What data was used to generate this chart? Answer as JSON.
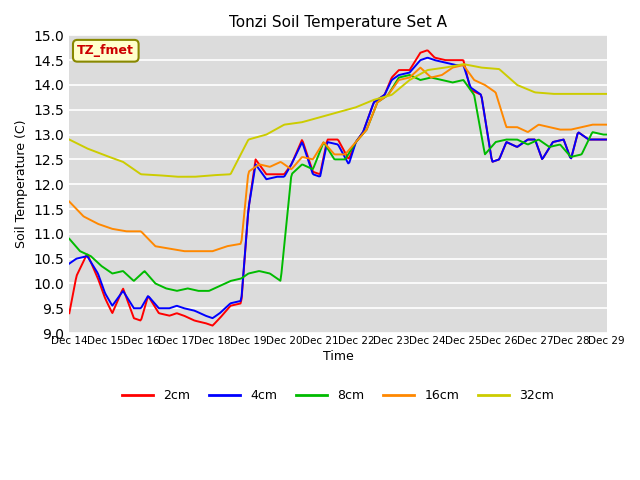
{
  "title": "Tonzi Soil Temperature Set A",
  "xlabel": "Time",
  "ylabel": "Soil Temperature (C)",
  "ylim": [
    9.0,
    15.0
  ],
  "yticks": [
    9.0,
    9.5,
    10.0,
    10.5,
    11.0,
    11.5,
    12.0,
    12.5,
    13.0,
    13.5,
    14.0,
    14.5,
    15.0
  ],
  "bg_color": "#dcdcdc",
  "fig_color": "#ffffff",
  "legend_label": "TZ_fmet",
  "legend_text_color": "#cc0000",
  "legend_bg": "#ffffcc",
  "legend_border": "#888800",
  "series_colors": {
    "2cm": "#ff0000",
    "4cm": "#0000ff",
    "8cm": "#00bb00",
    "16cm": "#ff8800",
    "32cm": "#cccc00"
  },
  "xtick_days": [
    14,
    15,
    16,
    17,
    18,
    19,
    20,
    21,
    22,
    23,
    24,
    25,
    26,
    27,
    28,
    29
  ],
  "xp_2cm": [
    14.0,
    14.2,
    14.5,
    14.8,
    15.0,
    15.2,
    15.5,
    15.8,
    16.0,
    16.2,
    16.5,
    16.8,
    17.0,
    17.2,
    17.5,
    17.8,
    18.0,
    18.2,
    18.5,
    18.8,
    19.0,
    19.2,
    19.5,
    19.8,
    20.0,
    20.2,
    20.5,
    20.8,
    21.0,
    21.2,
    21.5,
    21.8,
    22.0,
    22.2,
    22.5,
    22.8,
    23.0,
    23.2,
    23.5,
    23.8,
    24.0,
    24.2,
    24.5,
    24.8,
    25.0,
    25.2,
    25.5,
    25.8,
    26.0,
    26.2,
    26.5,
    26.8,
    27.0,
    27.2,
    27.5,
    27.8,
    28.0,
    28.2,
    28.5,
    28.8,
    29.0
  ],
  "fp_2cm": [
    9.4,
    10.15,
    10.6,
    10.1,
    9.7,
    9.4,
    9.9,
    9.3,
    9.25,
    9.75,
    9.4,
    9.35,
    9.4,
    9.35,
    9.25,
    9.2,
    9.15,
    9.3,
    9.55,
    9.6,
    11.5,
    12.5,
    12.2,
    12.2,
    12.2,
    12.4,
    12.9,
    12.25,
    12.2,
    12.9,
    12.9,
    12.5,
    12.85,
    13.05,
    13.65,
    13.8,
    14.15,
    14.3,
    14.3,
    14.65,
    14.7,
    14.55,
    14.5,
    14.5,
    14.5,
    13.9,
    13.8,
    12.45,
    12.5,
    12.85,
    12.75,
    12.9,
    12.9,
    12.5,
    12.85,
    12.9,
    12.5,
    13.05,
    12.9,
    12.9,
    12.9
  ],
  "xp_4cm": [
    14.0,
    14.2,
    14.5,
    14.8,
    15.0,
    15.2,
    15.5,
    15.8,
    16.0,
    16.2,
    16.5,
    16.8,
    17.0,
    17.2,
    17.5,
    17.8,
    18.0,
    18.2,
    18.5,
    18.8,
    19.0,
    19.2,
    19.5,
    19.8,
    20.0,
    20.2,
    20.5,
    20.8,
    21.0,
    21.2,
    21.5,
    21.8,
    22.0,
    22.2,
    22.5,
    22.8,
    23.0,
    23.2,
    23.5,
    23.8,
    24.0,
    24.2,
    24.5,
    24.8,
    25.0,
    25.2,
    25.5,
    25.8,
    26.0,
    26.2,
    26.5,
    26.8,
    27.0,
    27.2,
    27.5,
    27.8,
    28.0,
    28.2,
    28.5,
    28.8,
    29.0
  ],
  "fp_4cm": [
    10.4,
    10.5,
    10.55,
    10.2,
    9.8,
    9.55,
    9.85,
    9.5,
    9.5,
    9.75,
    9.5,
    9.5,
    9.55,
    9.5,
    9.45,
    9.35,
    9.3,
    9.4,
    9.6,
    9.65,
    11.5,
    12.4,
    12.1,
    12.15,
    12.15,
    12.4,
    12.85,
    12.2,
    12.15,
    12.85,
    12.8,
    12.4,
    12.85,
    13.05,
    13.65,
    13.8,
    14.1,
    14.2,
    14.25,
    14.5,
    14.55,
    14.5,
    14.45,
    14.4,
    14.4,
    13.95,
    13.8,
    12.45,
    12.5,
    12.85,
    12.75,
    12.9,
    12.9,
    12.5,
    12.85,
    12.9,
    12.5,
    13.05,
    12.9,
    12.9,
    12.9
  ],
  "xp_8cm": [
    14.0,
    14.3,
    14.6,
    14.9,
    15.2,
    15.5,
    15.8,
    16.1,
    16.4,
    16.7,
    17.0,
    17.3,
    17.6,
    17.9,
    18.2,
    18.5,
    18.8,
    19.0,
    19.3,
    19.6,
    19.9,
    20.2,
    20.5,
    20.8,
    21.1,
    21.4,
    21.7,
    22.0,
    22.3,
    22.6,
    22.9,
    23.2,
    23.5,
    23.8,
    24.1,
    24.4,
    24.7,
    25.0,
    25.3,
    25.6,
    25.9,
    26.2,
    26.5,
    26.8,
    27.1,
    27.4,
    27.7,
    28.0,
    28.3,
    28.6,
    28.9,
    29.0
  ],
  "fp_8cm": [
    10.9,
    10.65,
    10.55,
    10.35,
    10.2,
    10.25,
    10.05,
    10.25,
    10.0,
    9.9,
    9.85,
    9.9,
    9.85,
    9.85,
    9.95,
    10.05,
    10.1,
    10.2,
    10.25,
    10.2,
    10.05,
    12.2,
    12.4,
    12.3,
    12.85,
    12.5,
    12.5,
    12.85,
    13.1,
    13.65,
    13.8,
    14.15,
    14.2,
    14.1,
    14.15,
    14.1,
    14.05,
    14.1,
    13.8,
    12.6,
    12.85,
    12.9,
    12.9,
    12.8,
    12.9,
    12.75,
    12.8,
    12.55,
    12.6,
    13.05,
    13.0,
    13.0
  ],
  "xp_16cm": [
    14.0,
    14.4,
    14.8,
    15.2,
    15.6,
    16.0,
    16.4,
    16.8,
    17.2,
    17.6,
    18.0,
    18.4,
    18.8,
    19.0,
    19.3,
    19.6,
    19.9,
    20.2,
    20.5,
    20.8,
    21.1,
    21.4,
    21.7,
    22.0,
    22.3,
    22.6,
    22.9,
    23.2,
    23.5,
    23.8,
    24.1,
    24.4,
    24.7,
    25.0,
    25.3,
    25.6,
    25.9,
    26.2,
    26.5,
    26.8,
    27.1,
    27.4,
    27.7,
    28.0,
    28.3,
    28.6,
    28.9,
    29.0
  ],
  "fp_16cm": [
    11.65,
    11.35,
    11.2,
    11.1,
    11.05,
    11.05,
    10.75,
    10.7,
    10.65,
    10.65,
    10.65,
    10.75,
    10.8,
    12.25,
    12.4,
    12.35,
    12.45,
    12.3,
    12.55,
    12.5,
    12.85,
    12.6,
    12.6,
    12.85,
    13.1,
    13.65,
    13.8,
    14.1,
    14.15,
    14.35,
    14.15,
    14.2,
    14.35,
    14.4,
    14.1,
    14.0,
    13.85,
    13.15,
    13.15,
    13.05,
    13.2,
    13.15,
    13.1,
    13.1,
    13.15,
    13.2,
    13.2,
    13.2
  ],
  "xp_32cm": [
    14.0,
    14.5,
    15.0,
    15.5,
    16.0,
    16.5,
    17.0,
    17.5,
    18.0,
    18.5,
    19.0,
    19.5,
    20.0,
    20.5,
    21.0,
    21.5,
    22.0,
    22.5,
    23.0,
    23.5,
    24.0,
    24.5,
    25.0,
    25.5,
    26.0,
    26.5,
    27.0,
    27.5,
    28.0,
    28.5,
    29.0
  ],
  "fp_32cm": [
    12.9,
    12.72,
    12.58,
    12.45,
    12.2,
    12.18,
    12.15,
    12.15,
    12.18,
    12.2,
    12.9,
    13.0,
    13.2,
    13.25,
    13.35,
    13.45,
    13.55,
    13.7,
    13.8,
    14.1,
    14.3,
    14.35,
    14.42,
    14.35,
    14.32,
    14.0,
    13.85,
    13.82,
    13.82,
    13.82,
    13.82
  ]
}
